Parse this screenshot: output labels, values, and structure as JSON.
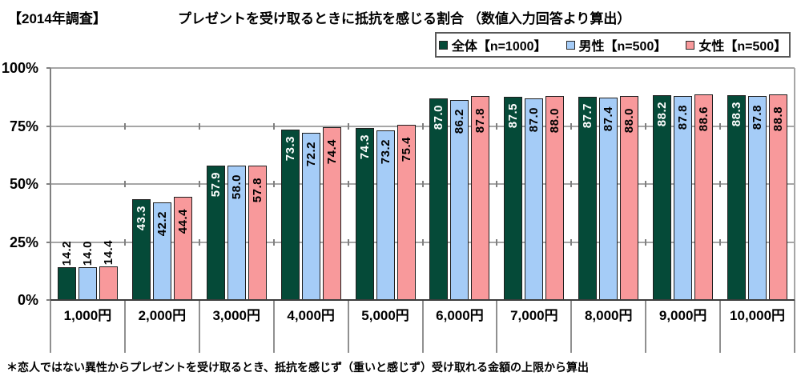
{
  "header": {
    "survey_tag": "【2014年調査】",
    "title": "プレゼントを受け取るときに抵抗を感じる割合 （数値入力回答より算出）"
  },
  "chart_data": {
    "type": "bar",
    "title": "プレゼントを受け取るときに抵抗を感じる割合（数値入力回答より算出）",
    "categories": [
      "1,000円",
      "2,000円",
      "3,000円",
      "4,000円",
      "5,000円",
      "6,000円",
      "7,000円",
      "8,000円",
      "9,000円",
      "10,000円"
    ],
    "series": [
      {
        "name": "全体【n=1000】",
        "color": "#054A38",
        "label_color_inside": "#FFFFFF",
        "values": [
          14.2,
          43.3,
          57.9,
          73.3,
          74.3,
          87.0,
          87.5,
          87.7,
          88.2,
          88.3
        ]
      },
      {
        "name": "男性【n=500】",
        "color": "#A5CCF7",
        "label_color_inside": "#000000",
        "values": [
          14.0,
          42.2,
          58.0,
          72.2,
          73.2,
          86.2,
          87.0,
          87.4,
          87.8,
          87.8
        ]
      },
      {
        "name": "女性【n=500】",
        "color": "#F8999B",
        "label_color_inside": "#000000",
        "values": [
          14.4,
          44.4,
          57.8,
          74.4,
          75.4,
          87.8,
          88.0,
          88.0,
          88.6,
          88.8
        ]
      }
    ],
    "y_ticks": [
      {
        "label": "0%",
        "value": 0
      },
      {
        "label": "25%",
        "value": 25
      },
      {
        "label": "50%",
        "value": 50
      },
      {
        "label": "75%",
        "value": 75
      },
      {
        "label": "100%",
        "value": 100
      }
    ],
    "ylim": [
      0,
      100
    ],
    "grid": true,
    "legend_position": "top-right",
    "value_label_decimals": 1,
    "value_label_rotation": "bottom-to-top",
    "outside_label_threshold": 20
  },
  "footnote": "＊恋人ではない異性からプレゼントを受け取るとき、抵抗を感じず（重いと感じず）受け取れる金額の上限から算出"
}
